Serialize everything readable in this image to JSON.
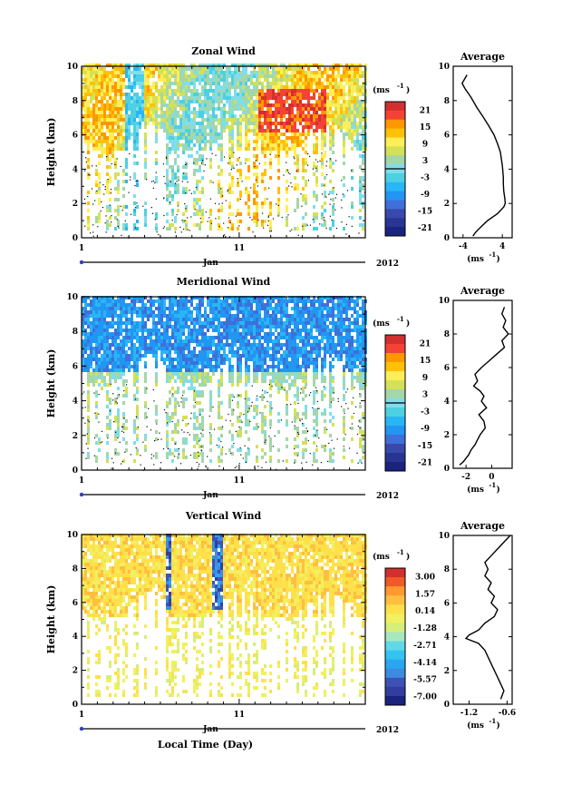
{
  "footer": {
    "xlabel": "Local Time (Day)"
  },
  "chart_data": [
    {
      "type": "heatmap",
      "title": "Zonal Wind",
      "ylabel": "Height (km)",
      "ylim": [
        0,
        10
      ],
      "yticks": [
        "0",
        "2",
        "4",
        "6",
        "8",
        "10"
      ],
      "xticks": [
        "1",
        "11"
      ],
      "month": "Jan",
      "year": "2012",
      "colorbar_label": "(ms",
      "colorbar_exp": "-1",
      "colorbar_ticks": [
        "21",
        "15",
        "9",
        "3",
        "-3",
        "-9",
        "-15",
        "-21"
      ],
      "profile": {
        "title": "Average",
        "xticks": [
          "-4",
          "4"
        ],
        "xlim": [
          -6,
          6
        ],
        "xlabel": "(ms",
        "xlabel_exp": "-1",
        "x": [
          -3.2,
          -4.2,
          -3.6,
          -2.4,
          -1.2,
          0.2,
          1.3,
          2.3,
          3.0,
          3.6,
          3.8,
          4.0,
          4.1,
          4.2,
          4.2,
          4.3,
          4.5,
          4.6,
          4.3,
          3.0,
          1.0,
          -0.5,
          -1.5,
          -2.0
        ],
        "y": [
          9.5,
          9.0,
          8.7,
          8.2,
          7.6,
          7.0,
          6.5,
          6.0,
          5.5,
          5.0,
          4.6,
          4.2,
          3.9,
          3.5,
          3.1,
          2.7,
          2.3,
          2.0,
          1.8,
          1.4,
          1.0,
          0.6,
          0.3,
          0.1
        ]
      }
    },
    {
      "type": "heatmap",
      "title": "Meridional Wind",
      "ylabel": "Height (km)",
      "ylim": [
        0,
        10
      ],
      "yticks": [
        "0",
        "2",
        "4",
        "6",
        "8",
        "10"
      ],
      "xticks": [
        "1",
        "11"
      ],
      "month": "Jan",
      "year": "2012",
      "colorbar_label": "(ms",
      "colorbar_exp": "-1",
      "colorbar_ticks": [
        "21",
        "15",
        "9",
        "3",
        "-3",
        "-9",
        "-15",
        "-21"
      ],
      "profile": {
        "title": "Average",
        "xticks": [
          "-2",
          "0"
        ],
        "xlim": [
          -3,
          1.6
        ],
        "xlabel": "(ms",
        "xlabel_exp": "-1",
        "x": [
          1.0,
          0.8,
          1.1,
          0.9,
          1.3,
          0.8,
          1.0,
          0.4,
          -0.2,
          -0.8,
          -1.3,
          -1.1,
          -1.4,
          -0.9,
          -0.6,
          -0.8,
          -0.4,
          -1.0,
          -0.6,
          -0.5,
          -0.9,
          -1.1,
          -1.3,
          -1.6,
          -1.8,
          -2.0,
          -2.2,
          -2.5
        ],
        "y": [
          9.6,
          9.2,
          8.8,
          8.4,
          8.0,
          7.6,
          7.2,
          6.8,
          6.4,
          6.0,
          5.6,
          5.2,
          4.9,
          4.6,
          4.3,
          4.0,
          3.6,
          3.2,
          2.8,
          2.4,
          2.0,
          1.7,
          1.4,
          1.1,
          0.8,
          0.6,
          0.4,
          0.2
        ]
      }
    },
    {
      "type": "heatmap",
      "title": "Vertical Wind",
      "ylabel": "Height (km)",
      "ylim": [
        0,
        10
      ],
      "yticks": [
        "0",
        "2",
        "4",
        "6",
        "8",
        "10"
      ],
      "xticks": [
        "1",
        "11"
      ],
      "month": "Jan",
      "year": "2012",
      "colorbar_label": "(ms",
      "colorbar_exp": "-1",
      "colorbar_ticks": [
        "3.00",
        "1.57",
        "0.14",
        "-1.28",
        "-2.71",
        "-4.14",
        "-5.57",
        "-7.00"
      ],
      "profile": {
        "title": "Average",
        "xticks": [
          "-1.2",
          "-0.6"
        ],
        "xlim": [
          -1.45,
          -0.52
        ],
        "xlabel": "(ms",
        "xlabel_exp": "-1",
        "x": [
          -0.55,
          -0.65,
          -0.75,
          -0.85,
          -0.95,
          -0.9,
          -0.95,
          -0.85,
          -0.9,
          -0.8,
          -0.85,
          -0.75,
          -0.8,
          -0.95,
          -1.05,
          -1.2,
          -1.25,
          -1.05,
          -0.95,
          -0.9,
          -0.85,
          -0.8,
          -0.75,
          -0.7,
          -0.65,
          -0.7
        ],
        "y": [
          10.0,
          9.6,
          9.2,
          8.8,
          8.4,
          8.0,
          7.6,
          7.2,
          6.8,
          6.4,
          6.0,
          5.6,
          5.2,
          4.8,
          4.4,
          4.1,
          3.9,
          3.6,
          3.2,
          2.8,
          2.4,
          2.0,
          1.6,
          1.2,
          0.8,
          0.3
        ]
      }
    }
  ]
}
